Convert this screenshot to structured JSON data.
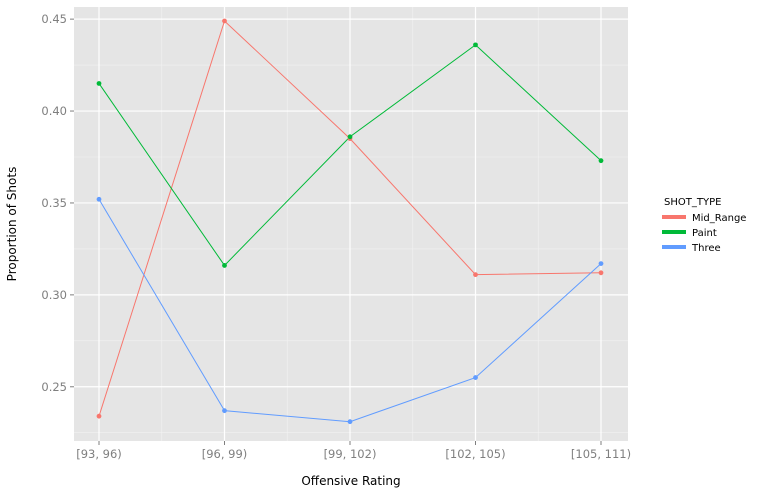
{
  "chart_data": {
    "type": "line",
    "title": "",
    "xlabel": "Offensive Rating",
    "ylabel": "Proportion of Shots",
    "categories": [
      "[93, 96)",
      "[96, 99)",
      "[99, 102)",
      "[102, 105)",
      "[105, 111)"
    ],
    "ylim": [
      0.2205,
      0.4566
    ],
    "yticks": [
      0.25,
      0.3,
      0.35,
      0.4,
      0.45
    ],
    "ytick_labels": [
      "0.25",
      "0.30",
      "0.35",
      "0.40",
      "0.45"
    ],
    "grid": true,
    "legend": {
      "title": "SHOT_TYPE",
      "position": "right"
    },
    "series": [
      {
        "name": "Mid_Range",
        "color": "#F8766D",
        "values": [
          0.234,
          0.449,
          0.385,
          0.311,
          0.312
        ]
      },
      {
        "name": "Paint",
        "color": "#00BA38",
        "values": [
          0.415,
          0.316,
          0.386,
          0.436,
          0.373
        ]
      },
      {
        "name": "Three",
        "color": "#619CFF",
        "values": [
          0.352,
          0.237,
          0.231,
          0.255,
          0.317
        ]
      }
    ]
  }
}
